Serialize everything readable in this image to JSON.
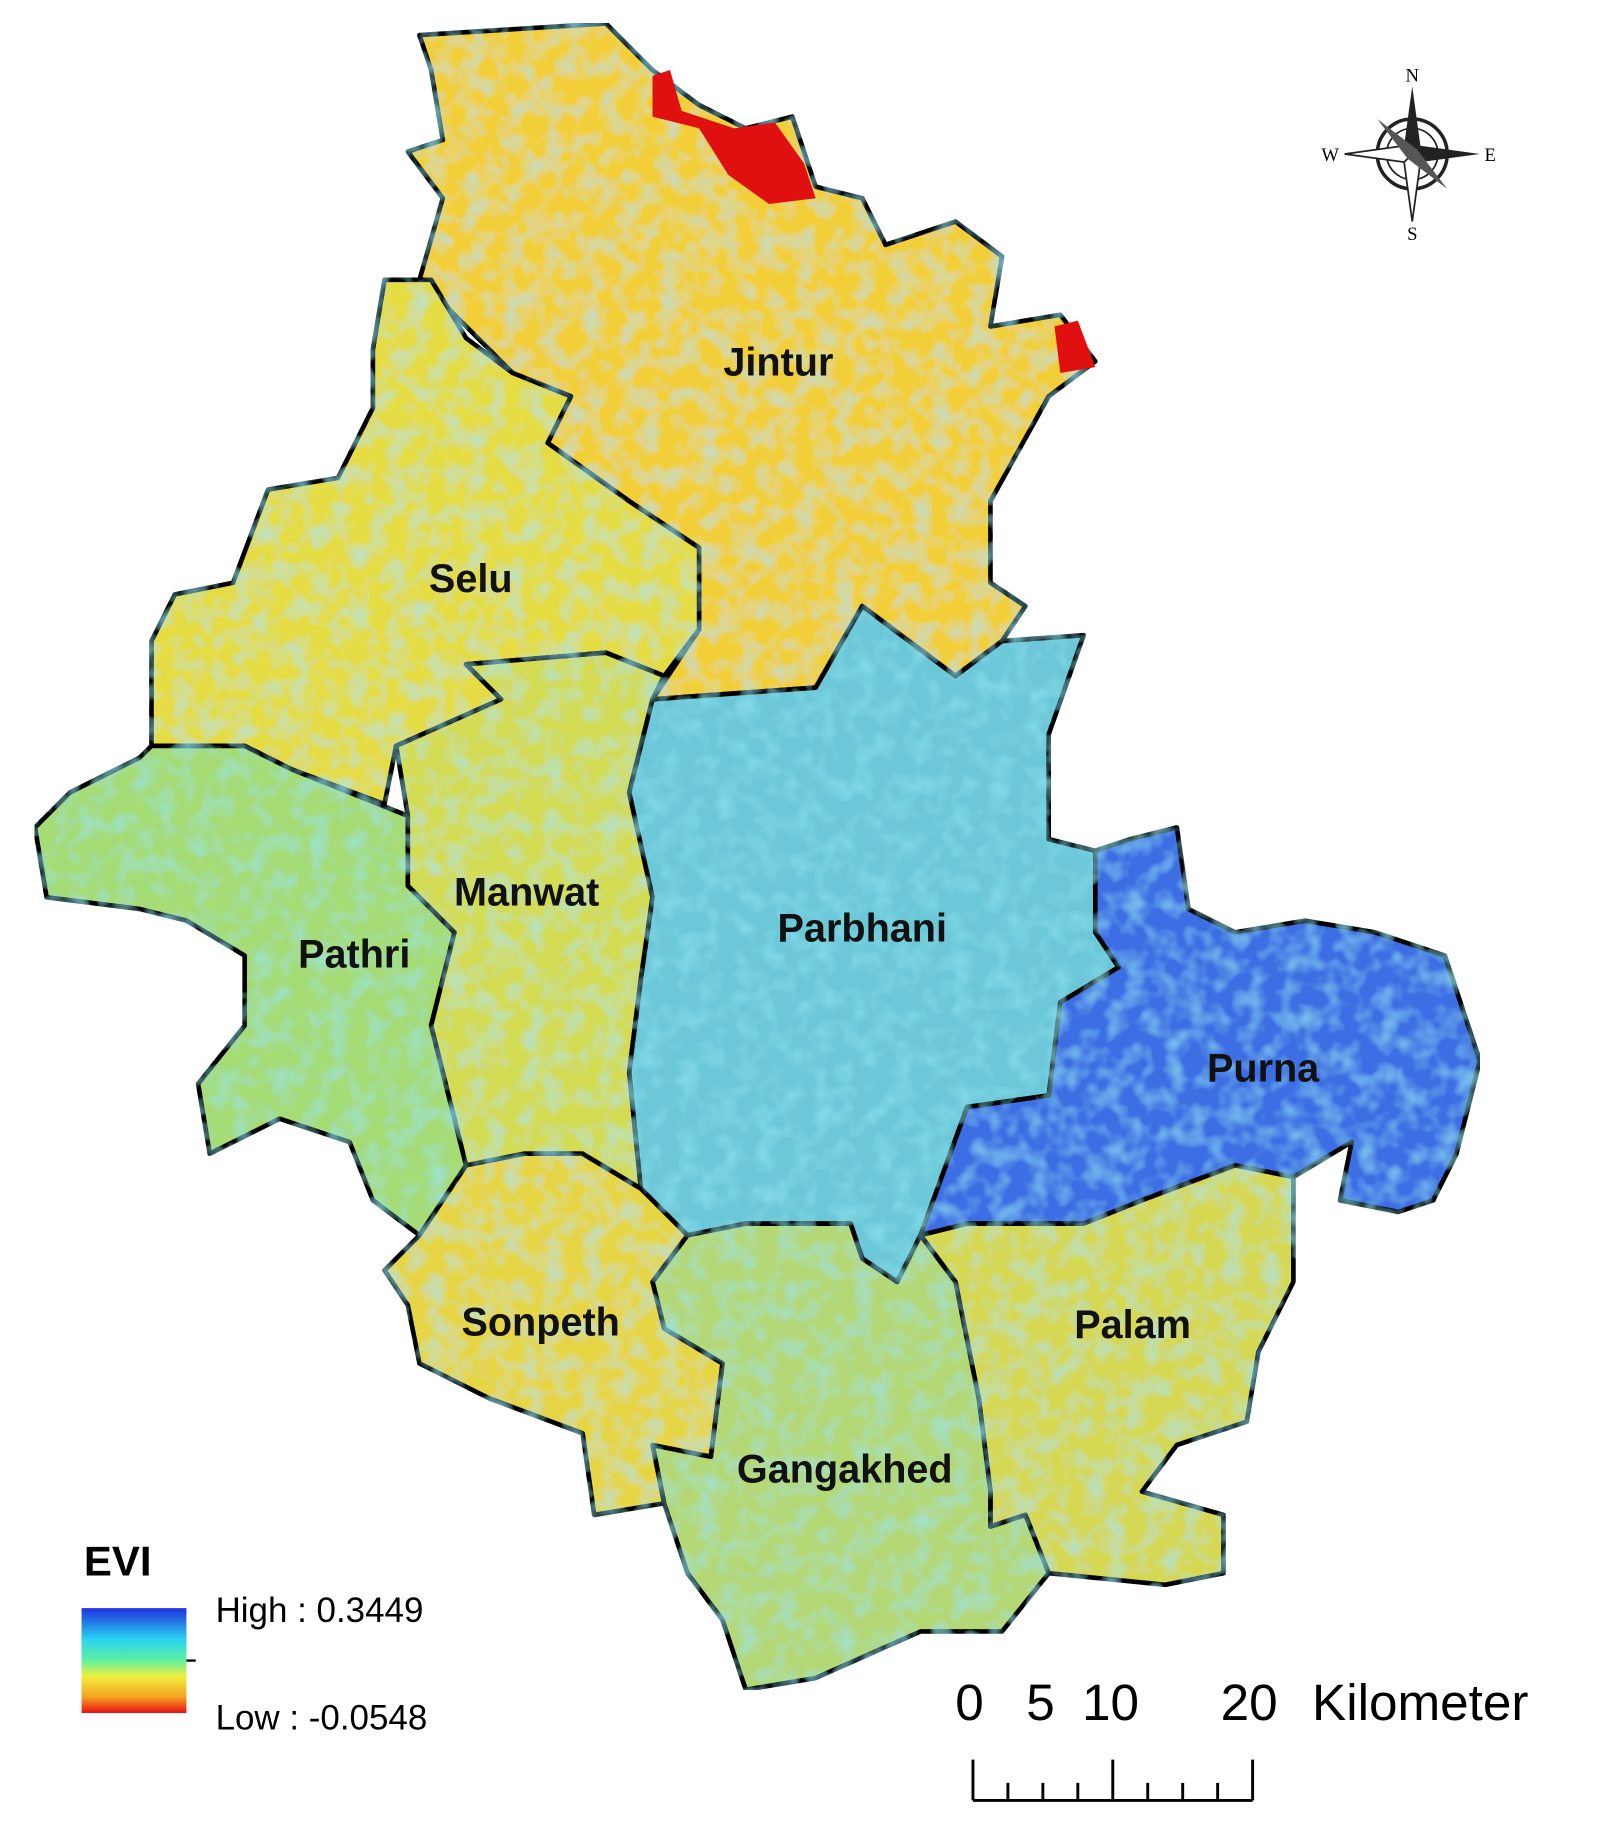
{
  "map": {
    "regions": [
      "Jintur",
      "Selu",
      "Pathri",
      "Manwat",
      "Parbhani",
      "Purna",
      "Palam",
      "Gangakhed",
      "Sonpeth"
    ],
    "legend": {
      "title": "EVI",
      "high": "High : 0.3449",
      "low": "Low : -0.0548"
    },
    "scale": {
      "labels": [
        "0",
        "5",
        "10",
        "20"
      ],
      "unit": "Kilometer"
    },
    "compass": {
      "n": "N",
      "s": "S",
      "e": "E",
      "w": "W"
    }
  }
}
